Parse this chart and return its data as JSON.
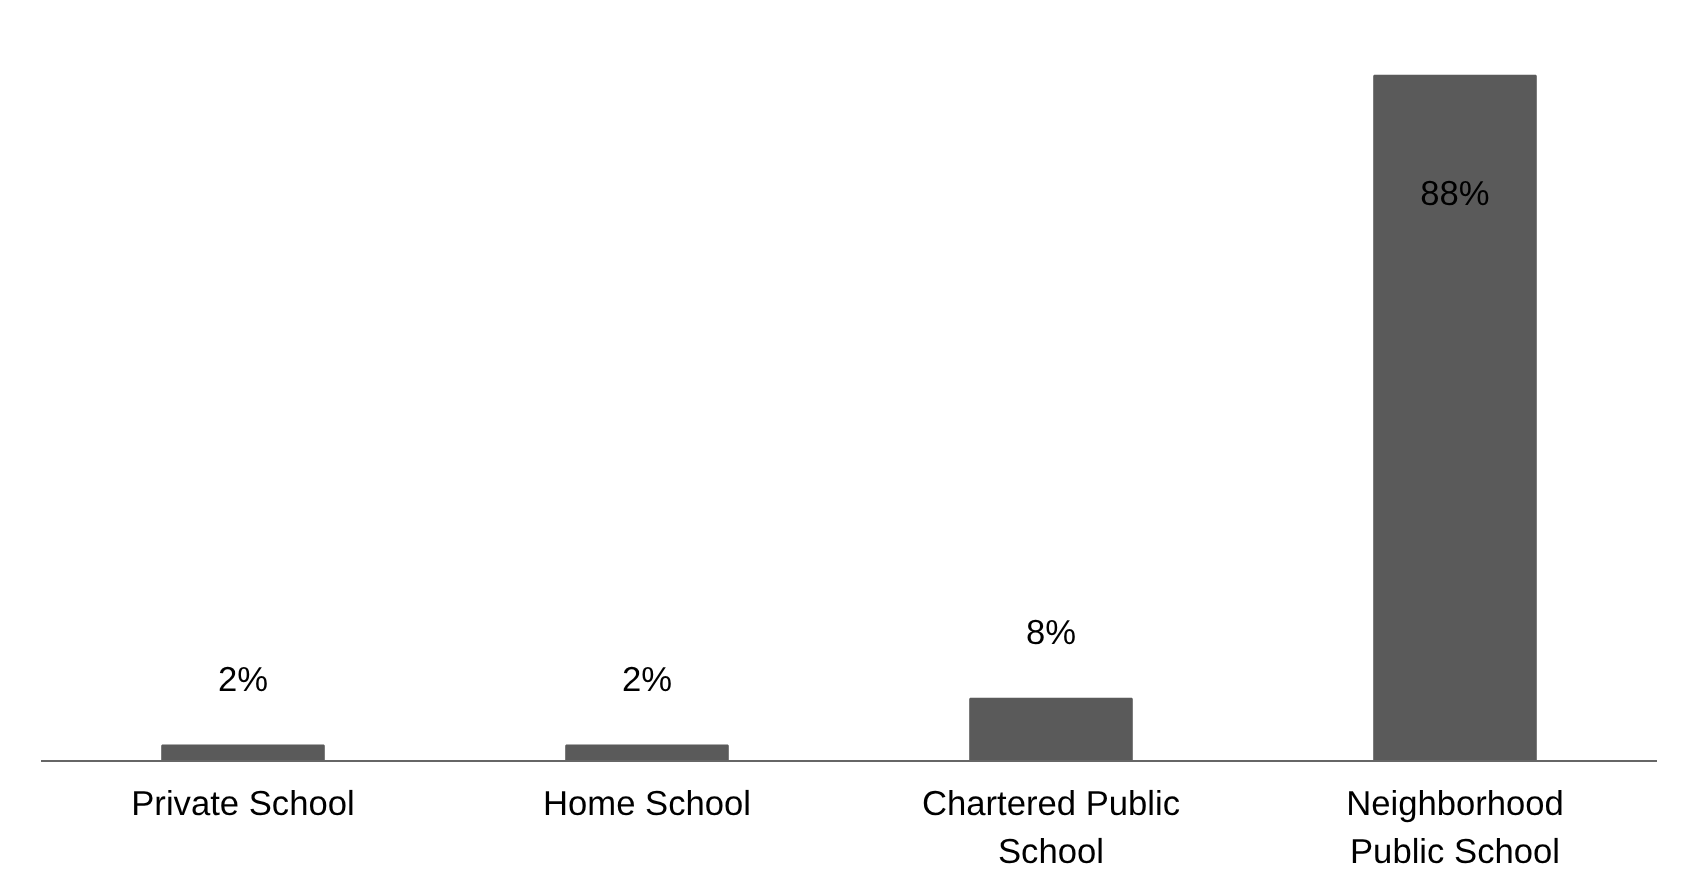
{
  "chart_data": {
    "type": "bar",
    "categories": [
      "Private School",
      "Home School",
      "Chartered Public School",
      "Neighborhood Public School"
    ],
    "values": [
      2,
      2,
      8,
      88
    ],
    "value_labels": [
      "2%",
      "2%",
      "8%",
      "88%"
    ],
    "color": "#5a5a5a",
    "tick_labels": "x",
    "grid": false
  }
}
